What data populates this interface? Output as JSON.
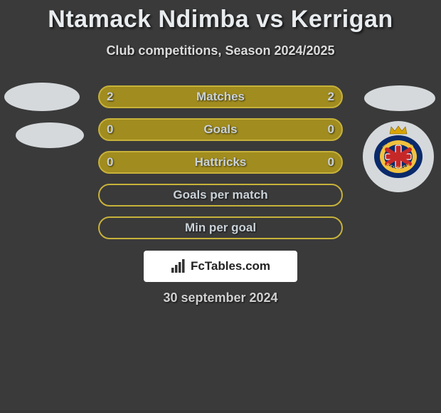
{
  "title": "Ntamack Ndimba vs Kerrigan",
  "subtitle": "Club competitions, Season 2024/2025",
  "rows": [
    {
      "label": "Matches",
      "left": "2",
      "right": "2",
      "fill": "#a18c1f",
      "border": "#c7b23a"
    },
    {
      "label": "Goals",
      "left": "0",
      "right": "0",
      "fill": "#a18c1f",
      "border": "#c7b23a"
    },
    {
      "label": "Hattricks",
      "left": "0",
      "right": "0",
      "fill": "#a18c1f",
      "border": "#c7b23a"
    },
    {
      "label": "Goals per match",
      "left": "",
      "right": "",
      "fill": "transparent",
      "border": "#c7b23a"
    },
    {
      "label": "Min per goal",
      "left": "",
      "right": "",
      "fill": "transparent",
      "border": "#c7b23a"
    }
  ],
  "bar_border_width": 2,
  "badge": {
    "outer_ring": "#0a2a6b",
    "inner_ring": "#f2c23e",
    "cross": "#c62828",
    "cross_outline": "#ffffff",
    "crown": "#d9a400",
    "text_top": "WAASLAND",
    "text_bottom": "BEVEREN"
  },
  "logo": {
    "text": "FcTables.com",
    "bar_color": "#333333"
  },
  "date": "30 september 2024",
  "colors": {
    "bg": "#3a3a3a",
    "title": "#e8ecef",
    "bar_text": "#c9d2d8",
    "avatar": "#d5d9dc",
    "logo_bg": "#ffffff"
  }
}
